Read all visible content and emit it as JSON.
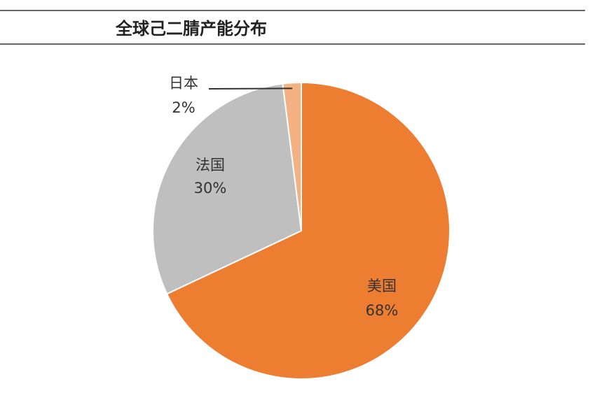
{
  "chart_data": {
    "type": "pie",
    "title": "全球己二腈产能分布",
    "categories": [
      "美国",
      "法国",
      "日本"
    ],
    "values": [
      68,
      30,
      2
    ],
    "value_labels": [
      "68%",
      "30%",
      "2%"
    ],
    "colors": [
      "#ed7d31",
      "#bfbfbf",
      "#f4b183"
    ]
  }
}
